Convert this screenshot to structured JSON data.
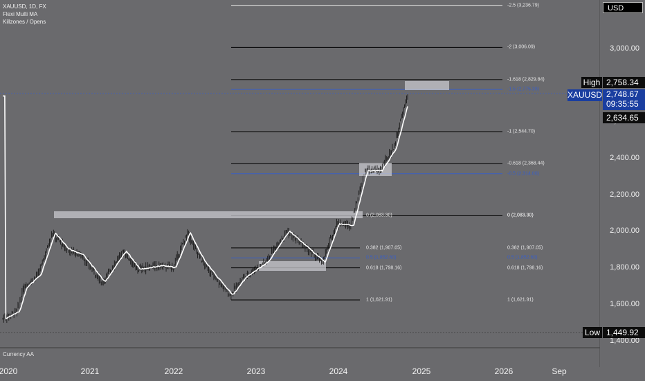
{
  "legend": {
    "symbol_line": "XAUUSD, 1D, FX",
    "indicator_1": "Flexi Multi MA",
    "indicator_2": "Killzones / Opens"
  },
  "pane_label": "Currency AA",
  "currency_badge": "USD",
  "price_axis": [
    "3,000.00",
    "2,800.00",
    "2,600.00",
    "2,400.00",
    "2,200.00",
    "2,000.00",
    "1,800.00",
    "1,600.00",
    "1,400.00"
  ],
  "time_axis": [
    "2020",
    "2021",
    "2022",
    "2023",
    "2024",
    "2025",
    "2026",
    "Sep"
  ],
  "tags": {
    "high_label": "High",
    "high_value": "2,758.34",
    "symbol": "XAUUSD",
    "last_price": "2,748.67",
    "countdown": "09:35:55",
    "marker_price": "2,634.65",
    "low_label": "Low",
    "low_value": "1,449.92"
  },
  "fib_upper": [
    {
      "label": "-2.5 (3,236.79)",
      "price": 3236.79,
      "color": "#e8e8e8"
    },
    {
      "label": "-2 (3,006.09)",
      "price": 3006.09,
      "color": "#000000"
    },
    {
      "label": "-1.618 (2,829.84)",
      "price": 2829.84,
      "color": "#000000"
    },
    {
      "label": "-1.5 (2,775.39)",
      "price": 2775.39,
      "color": "#3b5fc4"
    },
    {
      "label": "-1 (2,544.70)",
      "price": 2544.7,
      "color": "#000000"
    },
    {
      "label": "-0.618 (2,368.44)",
      "price": 2368.44,
      "color": "#000000"
    },
    {
      "label": "-0.5 (2,314.00)",
      "price": 2314.0,
      "color": "#3b5fc4"
    },
    {
      "label": "0 (2,083.30)",
      "price": 2083.3,
      "color": "#000000"
    }
  ],
  "fib_lower": [
    {
      "label": "0 (2,083.30)",
      "price": 2083.3,
      "color": "#000000",
      "right": "0 (2,083.30)"
    },
    {
      "label": "0.382 (1,907.05)",
      "price": 1907.05,
      "color": "#000000",
      "right": "0.382 (1,907.05)"
    },
    {
      "label": "0.5 (1,852.60)",
      "price": 1852.6,
      "color": "#3b5fc4",
      "right": "0.5 (1,852.60)"
    },
    {
      "label": "0.618 (1,798.16)",
      "price": 1798.16,
      "color": "#000000",
      "right": "0.618 (1,798.16)"
    },
    {
      "label": "1 (1,621.91)",
      "price": 1621.91,
      "color": "#000000",
      "right": "1 (1,621.91)"
    }
  ],
  "chart_data": {
    "type": "line",
    "symbol": "XAUUSD",
    "timeframe": "1D",
    "high": 2758.34,
    "low": 1449.92,
    "last": 2748.67,
    "ylim": [
      1380,
      3250
    ],
    "series": [
      {
        "name": "",
        "x": [
          "2020-01",
          "2020-03",
          "2020-04",
          "2020-06",
          "2020-08",
          "2020-10",
          "2020-12",
          "2021-03",
          "2021-06",
          "2021-08",
          "2021-11",
          "2022-01",
          "2022-03",
          "2022-05",
          "2022-07",
          "2022-09",
          "2022-11",
          "2023-02",
          "2023-05",
          "2023-07",
          "2023-10",
          "2023-12",
          "2024-02",
          "2024-04",
          "2024-06",
          "2024-08",
          "2024-10"
        ],
        "values": [
          1520,
          1560,
          1690,
          1760,
          1990,
          1900,
          1870,
          1720,
          1890,
          1790,
          1810,
          1800,
          1990,
          1840,
          1740,
          1650,
          1750,
          1830,
          2000,
          1930,
          1830,
          2040,
          2030,
          2330,
          2330,
          2450,
          2740
        ]
      }
    ]
  }
}
